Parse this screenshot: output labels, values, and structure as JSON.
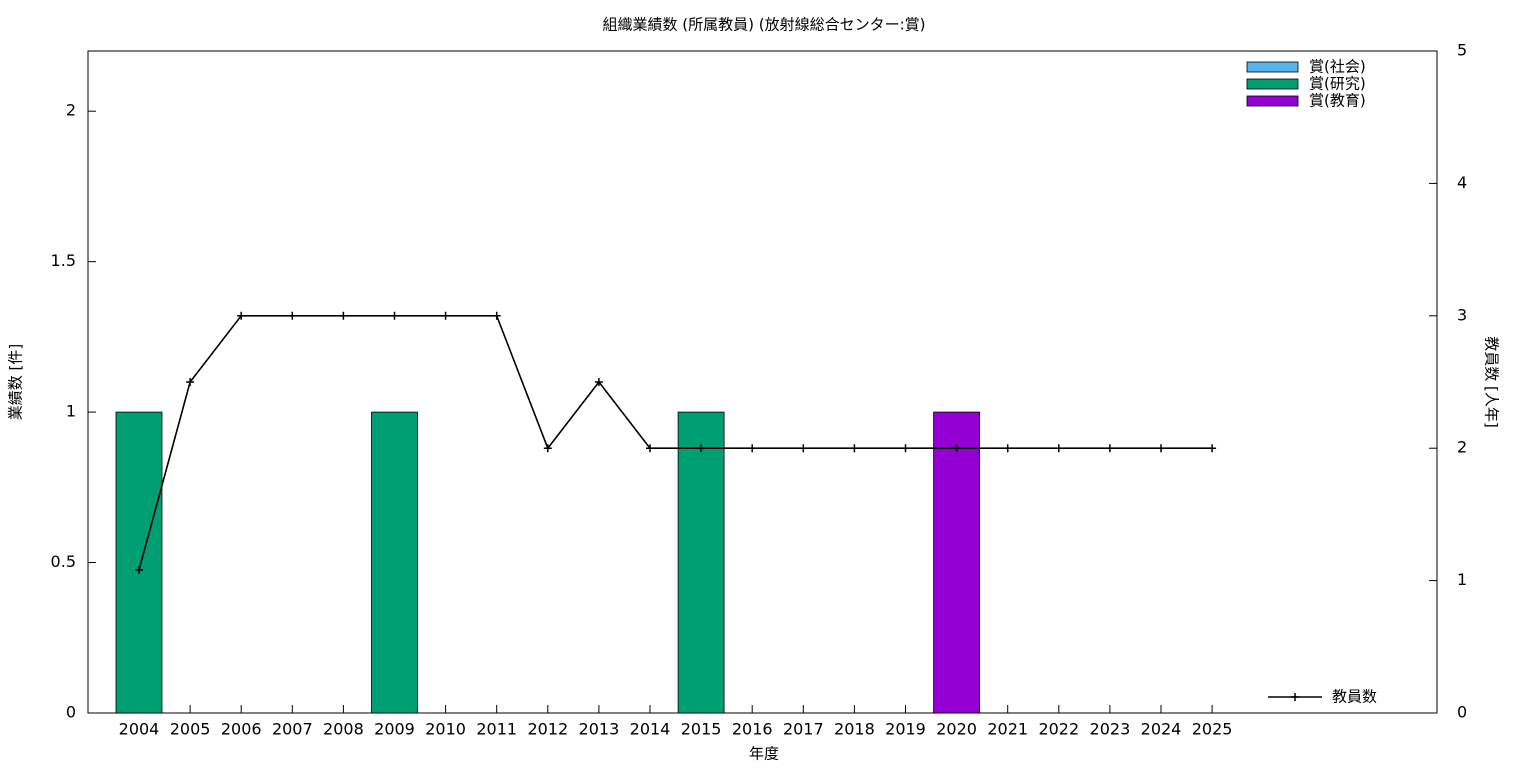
{
  "chart_data": {
    "type": "bar",
    "title": "組織業績数 (所属教員) (放射線総合センター:賞)",
    "x_label": "年度",
    "y_label": "業績数 [件]",
    "y2_label": "教員数 [人年]",
    "categories": [
      "2004",
      "2005",
      "2006",
      "2007",
      "2008",
      "2009",
      "2010",
      "2011",
      "2012",
      "2013",
      "2014",
      "2015",
      "2016",
      "2017",
      "2018",
      "2019",
      "2020",
      "2021",
      "2022",
      "2023",
      "2024",
      "2025"
    ],
    "stacked": true,
    "series": [
      {
        "name": "賞(社会)",
        "color": "#56b4e9",
        "values": [
          0,
          0,
          0,
          0,
          0,
          0,
          0,
          0,
          0,
          0,
          0,
          0,
          0,
          0,
          0,
          0,
          0,
          0,
          0,
          0,
          0,
          0
        ]
      },
      {
        "name": "賞(研究)",
        "color": "#009e73",
        "values": [
          1,
          0,
          0,
          0,
          0,
          1,
          0,
          0,
          0,
          0,
          0,
          1,
          0,
          0,
          0,
          0,
          0,
          0,
          0,
          0,
          0,
          0
        ]
      },
      {
        "name": "賞(教育)",
        "color": "#9400d3",
        "values": [
          0,
          0,
          0,
          0,
          0,
          0,
          0,
          0,
          0,
          0,
          0,
          0,
          0,
          0,
          0,
          0,
          1,
          0,
          0,
          0,
          0,
          0
        ]
      },
      {
        "name": "教員数",
        "color": "#000000",
        "type": "line",
        "axis": "y2",
        "values": [
          1.08,
          2.5,
          3,
          3,
          3,
          3,
          3,
          3,
          2,
          2.5,
          2,
          2,
          2,
          2,
          2,
          2,
          2,
          2,
          2,
          2,
          2,
          2
        ]
      }
    ],
    "ylim": [
      0,
      2.2
    ],
    "yticks": [
      0,
      0.5,
      1,
      1.5,
      2
    ],
    "y2lim": [
      0,
      5
    ],
    "y2ticks": [
      0,
      1,
      2,
      3,
      4,
      5
    ],
    "grid": false
  }
}
